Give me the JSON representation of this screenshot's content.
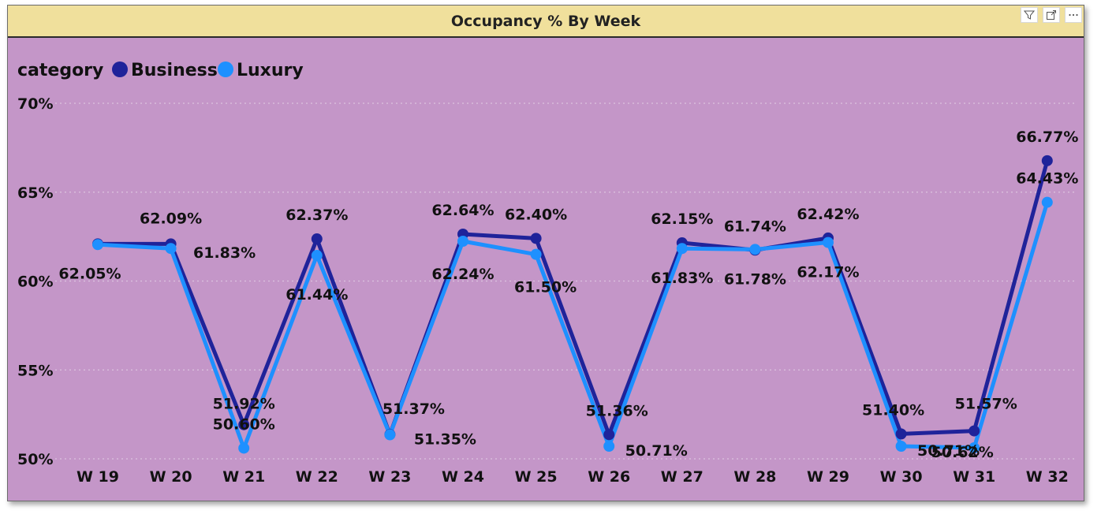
{
  "toolbar": {
    "icons": [
      "filter-icon",
      "focus-mode-icon",
      "more-options-icon"
    ]
  },
  "chart_data": {
    "type": "line",
    "title": "Occupancy % By Week",
    "legend_title": "category",
    "legend_position": "top-left",
    "categories": [
      "W 19",
      "W 20",
      "W 21",
      "W 22",
      "W 23",
      "W 24",
      "W 25",
      "W 26",
      "W 27",
      "W 28",
      "W 29",
      "W 30",
      "W 31",
      "W 32"
    ],
    "y_ticks": [
      "70%",
      "65%",
      "60%",
      "55%",
      "50%"
    ],
    "y_tick_values": [
      70,
      65,
      60,
      55,
      50
    ],
    "ylim": [
      50,
      70
    ],
    "grid": "dotted horizontal",
    "series": [
      {
        "name": "Business",
        "color": "#1f239a",
        "values": [
          62.09,
          62.09,
          51.92,
          62.37,
          51.37,
          62.64,
          62.4,
          51.36,
          62.15,
          61.74,
          62.42,
          51.4,
          51.57,
          66.77
        ],
        "labels": [
          "",
          "62.09%",
          "51.92%",
          "62.37%",
          "51.37%",
          "62.64%",
          "62.40%",
          "51.36%",
          "62.15%",
          "61.74%",
          "62.42%",
          "51.40%",
          "51.57%",
          "66.77%"
        ]
      },
      {
        "name": "Luxury",
        "color": "#1e90ff",
        "values": [
          62.05,
          61.83,
          50.6,
          61.44,
          51.35,
          62.24,
          61.5,
          50.71,
          61.83,
          61.78,
          62.17,
          50.71,
          50.62,
          64.43
        ],
        "labels": [
          "62.05%",
          "61.83%",
          "50.60%",
          "61.44%",
          "51.35%",
          "62.24%",
          "61.50%",
          "50.71%",
          "61.83%",
          "61.78%",
          "62.17%",
          "50.71%",
          "50.62%",
          "64.43%"
        ]
      }
    ]
  }
}
